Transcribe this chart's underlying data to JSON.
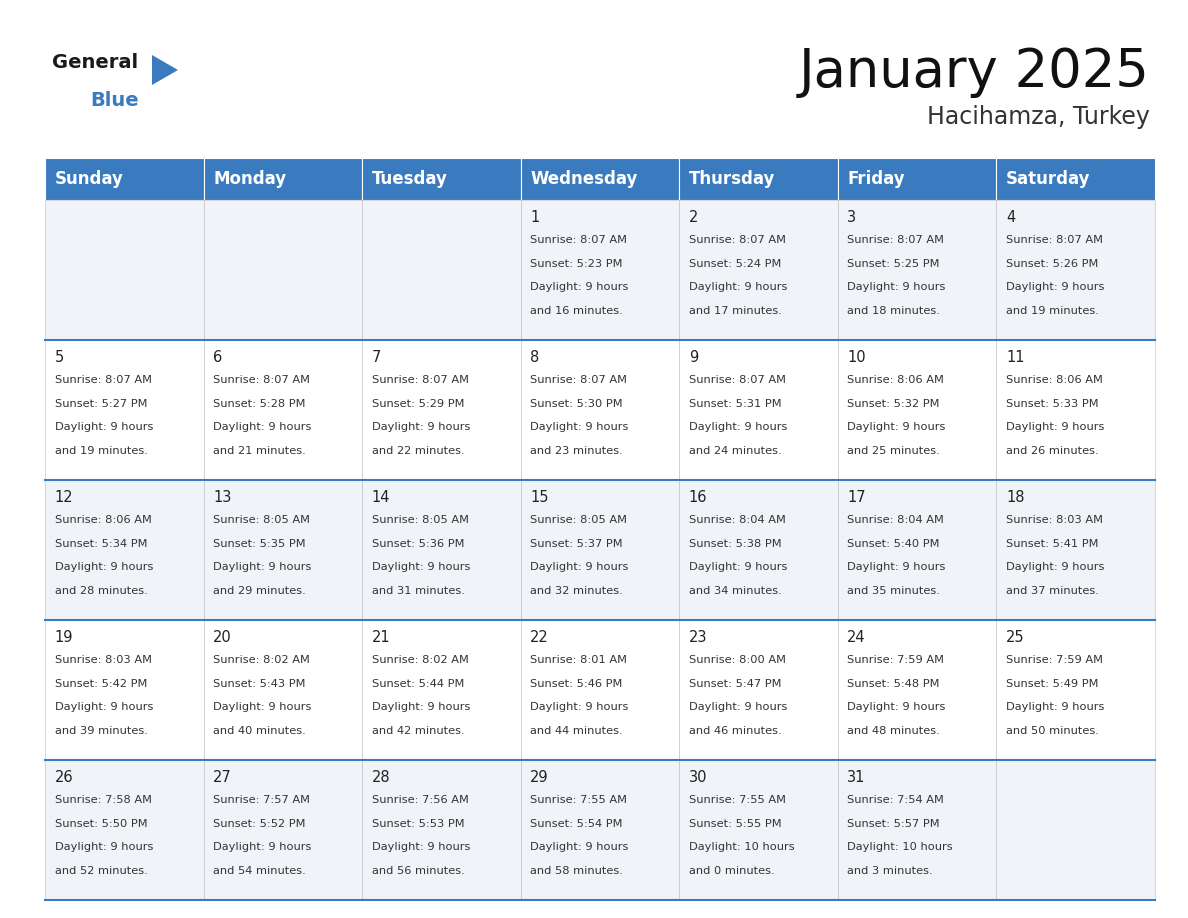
{
  "title": "January 2025",
  "subtitle": "Hacihamza, Turkey",
  "header_color": "#3a7abf",
  "header_text_color": "#ffffff",
  "cell_bg_even": "#f0f4f8",
  "cell_bg_odd": "#ffffff",
  "day_names": [
    "Sunday",
    "Monday",
    "Tuesday",
    "Wednesday",
    "Thursday",
    "Friday",
    "Saturday"
  ],
  "title_fontsize": 38,
  "subtitle_fontsize": 17,
  "header_fontsize": 12,
  "day_num_fontsize": 10.5,
  "info_fontsize": 8.2,
  "days": [
    {
      "day": 1,
      "col": 3,
      "row": 0,
      "sunrise": "8:07 AM",
      "sunset": "5:23 PM",
      "daylight": "9 hours and 16 minutes."
    },
    {
      "day": 2,
      "col": 4,
      "row": 0,
      "sunrise": "8:07 AM",
      "sunset": "5:24 PM",
      "daylight": "9 hours and 17 minutes."
    },
    {
      "day": 3,
      "col": 5,
      "row": 0,
      "sunrise": "8:07 AM",
      "sunset": "5:25 PM",
      "daylight": "9 hours and 18 minutes."
    },
    {
      "day": 4,
      "col": 6,
      "row": 0,
      "sunrise": "8:07 AM",
      "sunset": "5:26 PM",
      "daylight": "9 hours and 19 minutes."
    },
    {
      "day": 5,
      "col": 0,
      "row": 1,
      "sunrise": "8:07 AM",
      "sunset": "5:27 PM",
      "daylight": "9 hours and 19 minutes."
    },
    {
      "day": 6,
      "col": 1,
      "row": 1,
      "sunrise": "8:07 AM",
      "sunset": "5:28 PM",
      "daylight": "9 hours and 21 minutes."
    },
    {
      "day": 7,
      "col": 2,
      "row": 1,
      "sunrise": "8:07 AM",
      "sunset": "5:29 PM",
      "daylight": "9 hours and 22 minutes."
    },
    {
      "day": 8,
      "col": 3,
      "row": 1,
      "sunrise": "8:07 AM",
      "sunset": "5:30 PM",
      "daylight": "9 hours and 23 minutes."
    },
    {
      "day": 9,
      "col": 4,
      "row": 1,
      "sunrise": "8:07 AM",
      "sunset": "5:31 PM",
      "daylight": "9 hours and 24 minutes."
    },
    {
      "day": 10,
      "col": 5,
      "row": 1,
      "sunrise": "8:06 AM",
      "sunset": "5:32 PM",
      "daylight": "9 hours and 25 minutes."
    },
    {
      "day": 11,
      "col": 6,
      "row": 1,
      "sunrise": "8:06 AM",
      "sunset": "5:33 PM",
      "daylight": "9 hours and 26 minutes."
    },
    {
      "day": 12,
      "col": 0,
      "row": 2,
      "sunrise": "8:06 AM",
      "sunset": "5:34 PM",
      "daylight": "9 hours and 28 minutes."
    },
    {
      "day": 13,
      "col": 1,
      "row": 2,
      "sunrise": "8:05 AM",
      "sunset": "5:35 PM",
      "daylight": "9 hours and 29 minutes."
    },
    {
      "day": 14,
      "col": 2,
      "row": 2,
      "sunrise": "8:05 AM",
      "sunset": "5:36 PM",
      "daylight": "9 hours and 31 minutes."
    },
    {
      "day": 15,
      "col": 3,
      "row": 2,
      "sunrise": "8:05 AM",
      "sunset": "5:37 PM",
      "daylight": "9 hours and 32 minutes."
    },
    {
      "day": 16,
      "col": 4,
      "row": 2,
      "sunrise": "8:04 AM",
      "sunset": "5:38 PM",
      "daylight": "9 hours and 34 minutes."
    },
    {
      "day": 17,
      "col": 5,
      "row": 2,
      "sunrise": "8:04 AM",
      "sunset": "5:40 PM",
      "daylight": "9 hours and 35 minutes."
    },
    {
      "day": 18,
      "col": 6,
      "row": 2,
      "sunrise": "8:03 AM",
      "sunset": "5:41 PM",
      "daylight": "9 hours and 37 minutes."
    },
    {
      "day": 19,
      "col": 0,
      "row": 3,
      "sunrise": "8:03 AM",
      "sunset": "5:42 PM",
      "daylight": "9 hours and 39 minutes."
    },
    {
      "day": 20,
      "col": 1,
      "row": 3,
      "sunrise": "8:02 AM",
      "sunset": "5:43 PM",
      "daylight": "9 hours and 40 minutes."
    },
    {
      "day": 21,
      "col": 2,
      "row": 3,
      "sunrise": "8:02 AM",
      "sunset": "5:44 PM",
      "daylight": "9 hours and 42 minutes."
    },
    {
      "day": 22,
      "col": 3,
      "row": 3,
      "sunrise": "8:01 AM",
      "sunset": "5:46 PM",
      "daylight": "9 hours and 44 minutes."
    },
    {
      "day": 23,
      "col": 4,
      "row": 3,
      "sunrise": "8:00 AM",
      "sunset": "5:47 PM",
      "daylight": "9 hours and 46 minutes."
    },
    {
      "day": 24,
      "col": 5,
      "row": 3,
      "sunrise": "7:59 AM",
      "sunset": "5:48 PM",
      "daylight": "9 hours and 48 minutes."
    },
    {
      "day": 25,
      "col": 6,
      "row": 3,
      "sunrise": "7:59 AM",
      "sunset": "5:49 PM",
      "daylight": "9 hours and 50 minutes."
    },
    {
      "day": 26,
      "col": 0,
      "row": 4,
      "sunrise": "7:58 AM",
      "sunset": "5:50 PM",
      "daylight": "9 hours and 52 minutes."
    },
    {
      "day": 27,
      "col": 1,
      "row": 4,
      "sunrise": "7:57 AM",
      "sunset": "5:52 PM",
      "daylight": "9 hours and 54 minutes."
    },
    {
      "day": 28,
      "col": 2,
      "row": 4,
      "sunrise": "7:56 AM",
      "sunset": "5:53 PM",
      "daylight": "9 hours and 56 minutes."
    },
    {
      "day": 29,
      "col": 3,
      "row": 4,
      "sunrise": "7:55 AM",
      "sunset": "5:54 PM",
      "daylight": "9 hours and 58 minutes."
    },
    {
      "day": 30,
      "col": 4,
      "row": 4,
      "sunrise": "7:55 AM",
      "sunset": "5:55 PM",
      "daylight": "10 hours and 0 minutes."
    },
    {
      "day": 31,
      "col": 5,
      "row": 4,
      "sunrise": "7:54 AM",
      "sunset": "5:57 PM",
      "daylight": "10 hours and 3 minutes."
    }
  ]
}
